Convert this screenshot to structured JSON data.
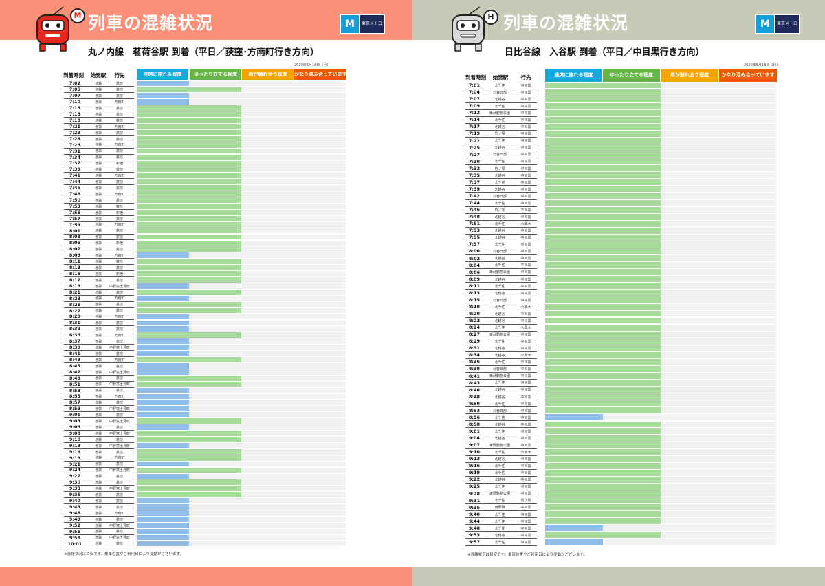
{
  "colors": {
    "level1": "#12a9dc",
    "level2": "#66b546",
    "level3": "#f5a300",
    "level4": "#ec5a00",
    "bar_level1": "#8fbde8",
    "bar_level2": "#a5dc9c",
    "track": "#f1f1f1",
    "left_banner": "#fb8f78",
    "right_banner": "#c9c9b8"
  },
  "icons": {
    "logo": "tokyo-metro-logo-icon",
    "left_mascot": "marunouchi-train-mascot-icon",
    "right_mascot": "hibiya-train-mascot-icon"
  },
  "left": {
    "title": "列車の混雑状況",
    "line_badge": "M",
    "logo_label": "東京メトロ",
    "subtitle": "丸ノ内線　茗荷谷駅 到着（平日／荻窪･方南町行き方向）",
    "date": "2020年5月18日（月）",
    "col_time": "到着時刻",
    "col_origin": "始発駅",
    "col_dest": "行先",
    "levels": [
      "座席に座れる程度",
      "ゆったり立てる程度",
      "肩が触れ合う程度",
      "かなり混み合っています"
    ],
    "note": "※混雑状況は目安です。乗車位置やご利用日により変動がございます。"
  },
  "right": {
    "title": "列車の混雑状況",
    "line_badge": "H",
    "logo_label": "東京メトロ",
    "subtitle": "日比谷線　入谷駅 到着（平日／中目黒行き方向）",
    "date": "2020年5月18日（月）",
    "col_time": "到着時刻",
    "col_origin": "始発駅",
    "col_dest": "行先",
    "levels": [
      "座席に座れる程度",
      "ゆったり立てる程度",
      "肩が触れ合う程度",
      "かなり混み合っています"
    ],
    "note": "※混雑状況は目安です。乗車位置やご利用日により変動がございます。"
  },
  "chart_data": [
    {
      "type": "bar",
      "orientation": "horizontal",
      "scale": "congestion level 1-4",
      "levels": [
        "座席に座れる程度",
        "ゆったり立てる程度",
        "肩が触れ合う程度",
        "かなり混み合っています"
      ],
      "rows": [
        {
          "time": "7:02",
          "origin": "池袋",
          "dest": "荻窪",
          "level": 1
        },
        {
          "time": "7:05",
          "origin": "池袋",
          "dest": "荻窪",
          "level": 2
        },
        {
          "time": "7:07",
          "origin": "池袋",
          "dest": "荻窪",
          "level": 1
        },
        {
          "time": "7:10",
          "origin": "池袋",
          "dest": "方南町",
          "level": 1
        },
        {
          "time": "7:13",
          "origin": "池袋",
          "dest": "荻窪",
          "level": 2
        },
        {
          "time": "7:15",
          "origin": "池袋",
          "dest": "荻窪",
          "level": 2
        },
        {
          "time": "7:18",
          "origin": "池袋",
          "dest": "荻窪",
          "level": 2
        },
        {
          "time": "7:21",
          "origin": "池袋",
          "dest": "方南町",
          "level": 2
        },
        {
          "time": "7:23",
          "origin": "池袋",
          "dest": "荻窪",
          "level": 2
        },
        {
          "time": "7:26",
          "origin": "池袋",
          "dest": "荻窪",
          "level": 2
        },
        {
          "time": "7:29",
          "origin": "池袋",
          "dest": "方南町",
          "level": 2
        },
        {
          "time": "7:31",
          "origin": "池袋",
          "dest": "荻窪",
          "level": 2
        },
        {
          "time": "7:34",
          "origin": "池袋",
          "dest": "荻窪",
          "level": 2
        },
        {
          "time": "7:37",
          "origin": "池袋",
          "dest": "新宿",
          "level": 2
        },
        {
          "time": "7:39",
          "origin": "池袋",
          "dest": "荻窪",
          "level": 2
        },
        {
          "time": "7:41",
          "origin": "池袋",
          "dest": "方南町",
          "level": 2
        },
        {
          "time": "7:44",
          "origin": "池袋",
          "dest": "荻窪",
          "level": 2
        },
        {
          "time": "7:46",
          "origin": "池袋",
          "dest": "荻窪",
          "level": 2
        },
        {
          "time": "7:48",
          "origin": "池袋",
          "dest": "方南町",
          "level": 2
        },
        {
          "time": "7:50",
          "origin": "池袋",
          "dest": "荻窪",
          "level": 2
        },
        {
          "time": "7:53",
          "origin": "池袋",
          "dest": "荻窪",
          "level": 2
        },
        {
          "time": "7:55",
          "origin": "池袋",
          "dest": "新宿",
          "level": 2
        },
        {
          "time": "7:57",
          "origin": "池袋",
          "dest": "荻窪",
          "level": 2
        },
        {
          "time": "7:59",
          "origin": "池袋",
          "dest": "方南町",
          "level": 2
        },
        {
          "time": "8:01",
          "origin": "池袋",
          "dest": "荻窪",
          "level": 2
        },
        {
          "time": "8:03",
          "origin": "池袋",
          "dest": "荻窪",
          "level": 2
        },
        {
          "time": "8:05",
          "origin": "池袋",
          "dest": "新宿",
          "level": 2
        },
        {
          "time": "8:07",
          "origin": "池袋",
          "dest": "荻窪",
          "level": 2
        },
        {
          "time": "8:09",
          "origin": "池袋",
          "dest": "方南町",
          "level": 1
        },
        {
          "time": "8:11",
          "origin": "池袋",
          "dest": "荻窪",
          "level": 2
        },
        {
          "time": "8:13",
          "origin": "池袋",
          "dest": "荻窪",
          "level": 2
        },
        {
          "time": "8:15",
          "origin": "池袋",
          "dest": "新宿",
          "level": 2
        },
        {
          "time": "8:17",
          "origin": "池袋",
          "dest": "荻窪",
          "level": 2
        },
        {
          "time": "8:19",
          "origin": "池袋",
          "dest": "中野富士見町",
          "level": 1
        },
        {
          "time": "8:21",
          "origin": "池袋",
          "dest": "荻窪",
          "level": 2
        },
        {
          "time": "8:23",
          "origin": "池袋",
          "dest": "方南町",
          "level": 1
        },
        {
          "time": "8:25",
          "origin": "池袋",
          "dest": "荻窪",
          "level": 2
        },
        {
          "time": "8:27",
          "origin": "池袋",
          "dest": "荻窪",
          "level": 2
        },
        {
          "time": "8:29",
          "origin": "池袋",
          "dest": "方南町",
          "level": 1
        },
        {
          "time": "8:31",
          "origin": "池袋",
          "dest": "荻窪",
          "level": 1
        },
        {
          "time": "8:33",
          "origin": "池袋",
          "dest": "荻窪",
          "level": 1
        },
        {
          "time": "8:35",
          "origin": "池袋",
          "dest": "方南町",
          "level": 2
        },
        {
          "time": "8:37",
          "origin": "池袋",
          "dest": "荻窪",
          "level": 1
        },
        {
          "time": "8:39",
          "origin": "池袋",
          "dest": "中野富士見町",
          "level": 1
        },
        {
          "time": "8:41",
          "origin": "池袋",
          "dest": "荻窪",
          "level": 1
        },
        {
          "time": "8:43",
          "origin": "池袋",
          "dest": "方南町",
          "level": 2
        },
        {
          "time": "8:45",
          "origin": "池袋",
          "dest": "荻窪",
          "level": 1
        },
        {
          "time": "8:47",
          "origin": "池袋",
          "dest": "中野富士見町",
          "level": 1
        },
        {
          "time": "8:49",
          "origin": "池袋",
          "dest": "荻窪",
          "level": 2
        },
        {
          "time": "8:51",
          "origin": "池袋",
          "dest": "中野富士見町",
          "level": 2
        },
        {
          "time": "8:53",
          "origin": "池袋",
          "dest": "荻窪",
          "level": 1
        },
        {
          "time": "8:55",
          "origin": "池袋",
          "dest": "方南町",
          "level": 1
        },
        {
          "time": "8:57",
          "origin": "池袋",
          "dest": "荻窪",
          "level": 1
        },
        {
          "time": "8:59",
          "origin": "池袋",
          "dest": "中野富士見町",
          "level": 1
        },
        {
          "time": "9:01",
          "origin": "池袋",
          "dest": "荻窪",
          "level": 1
        },
        {
          "time": "9:03",
          "origin": "池袋",
          "dest": "中野富士見町",
          "level": 2
        },
        {
          "time": "9:05",
          "origin": "池袋",
          "dest": "荻窪",
          "level": 1
        },
        {
          "time": "9:08",
          "origin": "池袋",
          "dest": "中野富士見町",
          "level": 2
        },
        {
          "time": "9:10",
          "origin": "池袋",
          "dest": "荻窪",
          "level": 2
        },
        {
          "time": "9:13",
          "origin": "池袋",
          "dest": "中野富士見町",
          "level": 1
        },
        {
          "time": "9:16",
          "origin": "池袋",
          "dest": "荻窪",
          "level": 2
        },
        {
          "time": "9:19",
          "origin": "池袋",
          "dest": "方南町",
          "level": 2
        },
        {
          "time": "9:21",
          "origin": "池袋",
          "dest": "荻窪",
          "level": 1
        },
        {
          "time": "9:24",
          "origin": "池袋",
          "dest": "中野富士見町",
          "level": 2
        },
        {
          "time": "9:27",
          "origin": "池袋",
          "dest": "荻窪",
          "level": 1
        },
        {
          "time": "9:30",
          "origin": "池袋",
          "dest": "荻窪",
          "level": 2
        },
        {
          "time": "9:33",
          "origin": "池袋",
          "dest": "中野富士見町",
          "level": 2
        },
        {
          "time": "9:36",
          "origin": "池袋",
          "dest": "荻窪",
          "level": 2
        },
        {
          "time": "9:40",
          "origin": "池袋",
          "dest": "荻窪",
          "level": 1
        },
        {
          "time": "9:43",
          "origin": "池袋",
          "dest": "荻窪",
          "level": 1
        },
        {
          "time": "9:46",
          "origin": "池袋",
          "dest": "方南町",
          "level": 1
        },
        {
          "time": "9:49",
          "origin": "池袋",
          "dest": "荻窪",
          "level": 1
        },
        {
          "time": "9:52",
          "origin": "池袋",
          "dest": "中野富士見町",
          "level": 1
        },
        {
          "time": "9:55",
          "origin": "池袋",
          "dest": "荻窪",
          "level": 1
        },
        {
          "time": "9:58",
          "origin": "池袋",
          "dest": "中野富士見町",
          "level": 1
        },
        {
          "time": "10:01",
          "origin": "池袋",
          "dest": "荻窪",
          "level": 1
        }
      ]
    },
    {
      "type": "bar",
      "orientation": "horizontal",
      "scale": "congestion level 1-4",
      "levels": [
        "座席に座れる程度",
        "ゆったり立てる程度",
        "肩が触れ合う程度",
        "かなり混み合っています"
      ],
      "rows": [
        {
          "time": "7:01",
          "origin": "北千住",
          "dest": "中目黒",
          "level": 2
        },
        {
          "time": "7:04",
          "origin": "北春日部",
          "dest": "中目黒",
          "level": 2
        },
        {
          "time": "7:07",
          "origin": "北越谷",
          "dest": "中目黒",
          "level": 2
        },
        {
          "time": "7:09",
          "origin": "北千住",
          "dest": "中目黒",
          "level": 2
        },
        {
          "time": "7:12",
          "origin": "東武動物公園",
          "dest": "中目黒",
          "level": 2
        },
        {
          "time": "7:14",
          "origin": "北千住",
          "dest": "中目黒",
          "level": 2
        },
        {
          "time": "7:17",
          "origin": "北越谷",
          "dest": "中目黒",
          "level": 2
        },
        {
          "time": "7:19",
          "origin": "竹ノ塚",
          "dest": "中目黒",
          "level": 2
        },
        {
          "time": "7:22",
          "origin": "北千住",
          "dest": "中目黒",
          "level": 2
        },
        {
          "time": "7:25",
          "origin": "北越谷",
          "dest": "中目黒",
          "level": 2
        },
        {
          "time": "7:27",
          "origin": "北春日部",
          "dest": "中目黒",
          "level": 2
        },
        {
          "time": "7:30",
          "origin": "北千住",
          "dest": "中目黒",
          "level": 2
        },
        {
          "time": "7:32",
          "origin": "竹ノ塚",
          "dest": "中目黒",
          "level": 2
        },
        {
          "time": "7:35",
          "origin": "北越谷",
          "dest": "中目黒",
          "level": 2
        },
        {
          "time": "7:37",
          "origin": "北千住",
          "dest": "中目黒",
          "level": 2
        },
        {
          "time": "7:39",
          "origin": "北越谷",
          "dest": "中目黒",
          "level": 2
        },
        {
          "time": "7:42",
          "origin": "北春日部",
          "dest": "中目黒",
          "level": 2
        },
        {
          "time": "7:44",
          "origin": "北千住",
          "dest": "中目黒",
          "level": 2
        },
        {
          "time": "7:46",
          "origin": "竹ノ塚",
          "dest": "中目黒",
          "level": 2
        },
        {
          "time": "7:48",
          "origin": "北越谷",
          "dest": "中目黒",
          "level": 2
        },
        {
          "time": "7:51",
          "origin": "北千住",
          "dest": "六本木",
          "level": 2
        },
        {
          "time": "7:53",
          "origin": "北越谷",
          "dest": "中目黒",
          "level": 2
        },
        {
          "time": "7:55",
          "origin": "北越谷",
          "dest": "中目黒",
          "level": 2
        },
        {
          "time": "7:57",
          "origin": "北千住",
          "dest": "中目黒",
          "level": 2
        },
        {
          "time": "8:00",
          "origin": "北春日部",
          "dest": "中目黒",
          "level": 2
        },
        {
          "time": "8:02",
          "origin": "北越谷",
          "dest": "中目黒",
          "level": 2
        },
        {
          "time": "8:04",
          "origin": "北千住",
          "dest": "中目黒",
          "level": 2
        },
        {
          "time": "8:06",
          "origin": "東武動物公園",
          "dest": "中目黒",
          "level": 2
        },
        {
          "time": "8:09",
          "origin": "北越谷",
          "dest": "中目黒",
          "level": 2
        },
        {
          "time": "8:11",
          "origin": "北千住",
          "dest": "中目黒",
          "level": 2
        },
        {
          "time": "8:13",
          "origin": "北越谷",
          "dest": "中目黒",
          "level": 2
        },
        {
          "time": "8:15",
          "origin": "北春日部",
          "dest": "中目黒",
          "level": 2
        },
        {
          "time": "8:18",
          "origin": "北千住",
          "dest": "六本木",
          "level": 2
        },
        {
          "time": "8:20",
          "origin": "北越谷",
          "dest": "中目黒",
          "level": 2
        },
        {
          "time": "8:22",
          "origin": "北越谷",
          "dest": "中目黒",
          "level": 2
        },
        {
          "time": "8:24",
          "origin": "北千住",
          "dest": "六本木",
          "level": 2
        },
        {
          "time": "8:27",
          "origin": "東武動物公園",
          "dest": "中目黒",
          "level": 2
        },
        {
          "time": "8:29",
          "origin": "北千住",
          "dest": "中目黒",
          "level": 2
        },
        {
          "time": "8:31",
          "origin": "北越谷",
          "dest": "中目黒",
          "level": 2
        },
        {
          "time": "8:34",
          "origin": "北越谷",
          "dest": "六本木",
          "level": 2
        },
        {
          "time": "8:36",
          "origin": "北千住",
          "dest": "中目黒",
          "level": 2
        },
        {
          "time": "8:38",
          "origin": "北春日部",
          "dest": "中目黒",
          "level": 2
        },
        {
          "time": "8:41",
          "origin": "東武動物公園",
          "dest": "中目黒",
          "level": 2
        },
        {
          "time": "8:43",
          "origin": "北千住",
          "dest": "中目黒",
          "level": 2
        },
        {
          "time": "8:46",
          "origin": "北越谷",
          "dest": "中目黒",
          "level": 2
        },
        {
          "time": "8:48",
          "origin": "北越谷",
          "dest": "中目黒",
          "level": 2
        },
        {
          "time": "8:50",
          "origin": "北千住",
          "dest": "中目黒",
          "level": 2
        },
        {
          "time": "8:53",
          "origin": "北春日部",
          "dest": "中目黒",
          "level": 2
        },
        {
          "time": "8:56",
          "origin": "北千住",
          "dest": "中目黒",
          "level": 1
        },
        {
          "time": "8:58",
          "origin": "北越谷",
          "dest": "中目黒",
          "level": 2
        },
        {
          "time": "9:01",
          "origin": "北千住",
          "dest": "中目黒",
          "level": 2
        },
        {
          "time": "9:04",
          "origin": "北越谷",
          "dest": "中目黒",
          "level": 2
        },
        {
          "time": "9:07",
          "origin": "東武動物公園",
          "dest": "中目黒",
          "level": 2
        },
        {
          "time": "9:10",
          "origin": "北千住",
          "dest": "六本木",
          "level": 2
        },
        {
          "time": "9:13",
          "origin": "北越谷",
          "dest": "中目黒",
          "level": 2
        },
        {
          "time": "9:16",
          "origin": "北千住",
          "dest": "中目黒",
          "level": 2
        },
        {
          "time": "9:19",
          "origin": "北千住",
          "dest": "中目黒",
          "level": 2
        },
        {
          "time": "9:22",
          "origin": "北越谷",
          "dest": "中目黒",
          "level": 2
        },
        {
          "time": "9:25",
          "origin": "北千住",
          "dest": "中目黒",
          "level": 2
        },
        {
          "time": "9:28",
          "origin": "東武動物公園",
          "dest": "中目黒",
          "level": 2
        },
        {
          "time": "9:31",
          "origin": "北千住",
          "dest": "霞ケ関",
          "level": 2
        },
        {
          "time": "9:35",
          "origin": "南栗橋",
          "dest": "中目黒",
          "level": 2
        },
        {
          "time": "9:40",
          "origin": "北千住",
          "dest": "中目黒",
          "level": 2
        },
        {
          "time": "9:44",
          "origin": "北千住",
          "dest": "中目黒",
          "level": 2
        },
        {
          "time": "9:48",
          "origin": "北千住",
          "dest": "中目黒",
          "level": 1
        },
        {
          "time": "9:53",
          "origin": "北越谷",
          "dest": "中目黒",
          "level": 2
        },
        {
          "time": "9:57",
          "origin": "北千住",
          "dest": "中目黒",
          "level": 1
        }
      ]
    }
  ]
}
